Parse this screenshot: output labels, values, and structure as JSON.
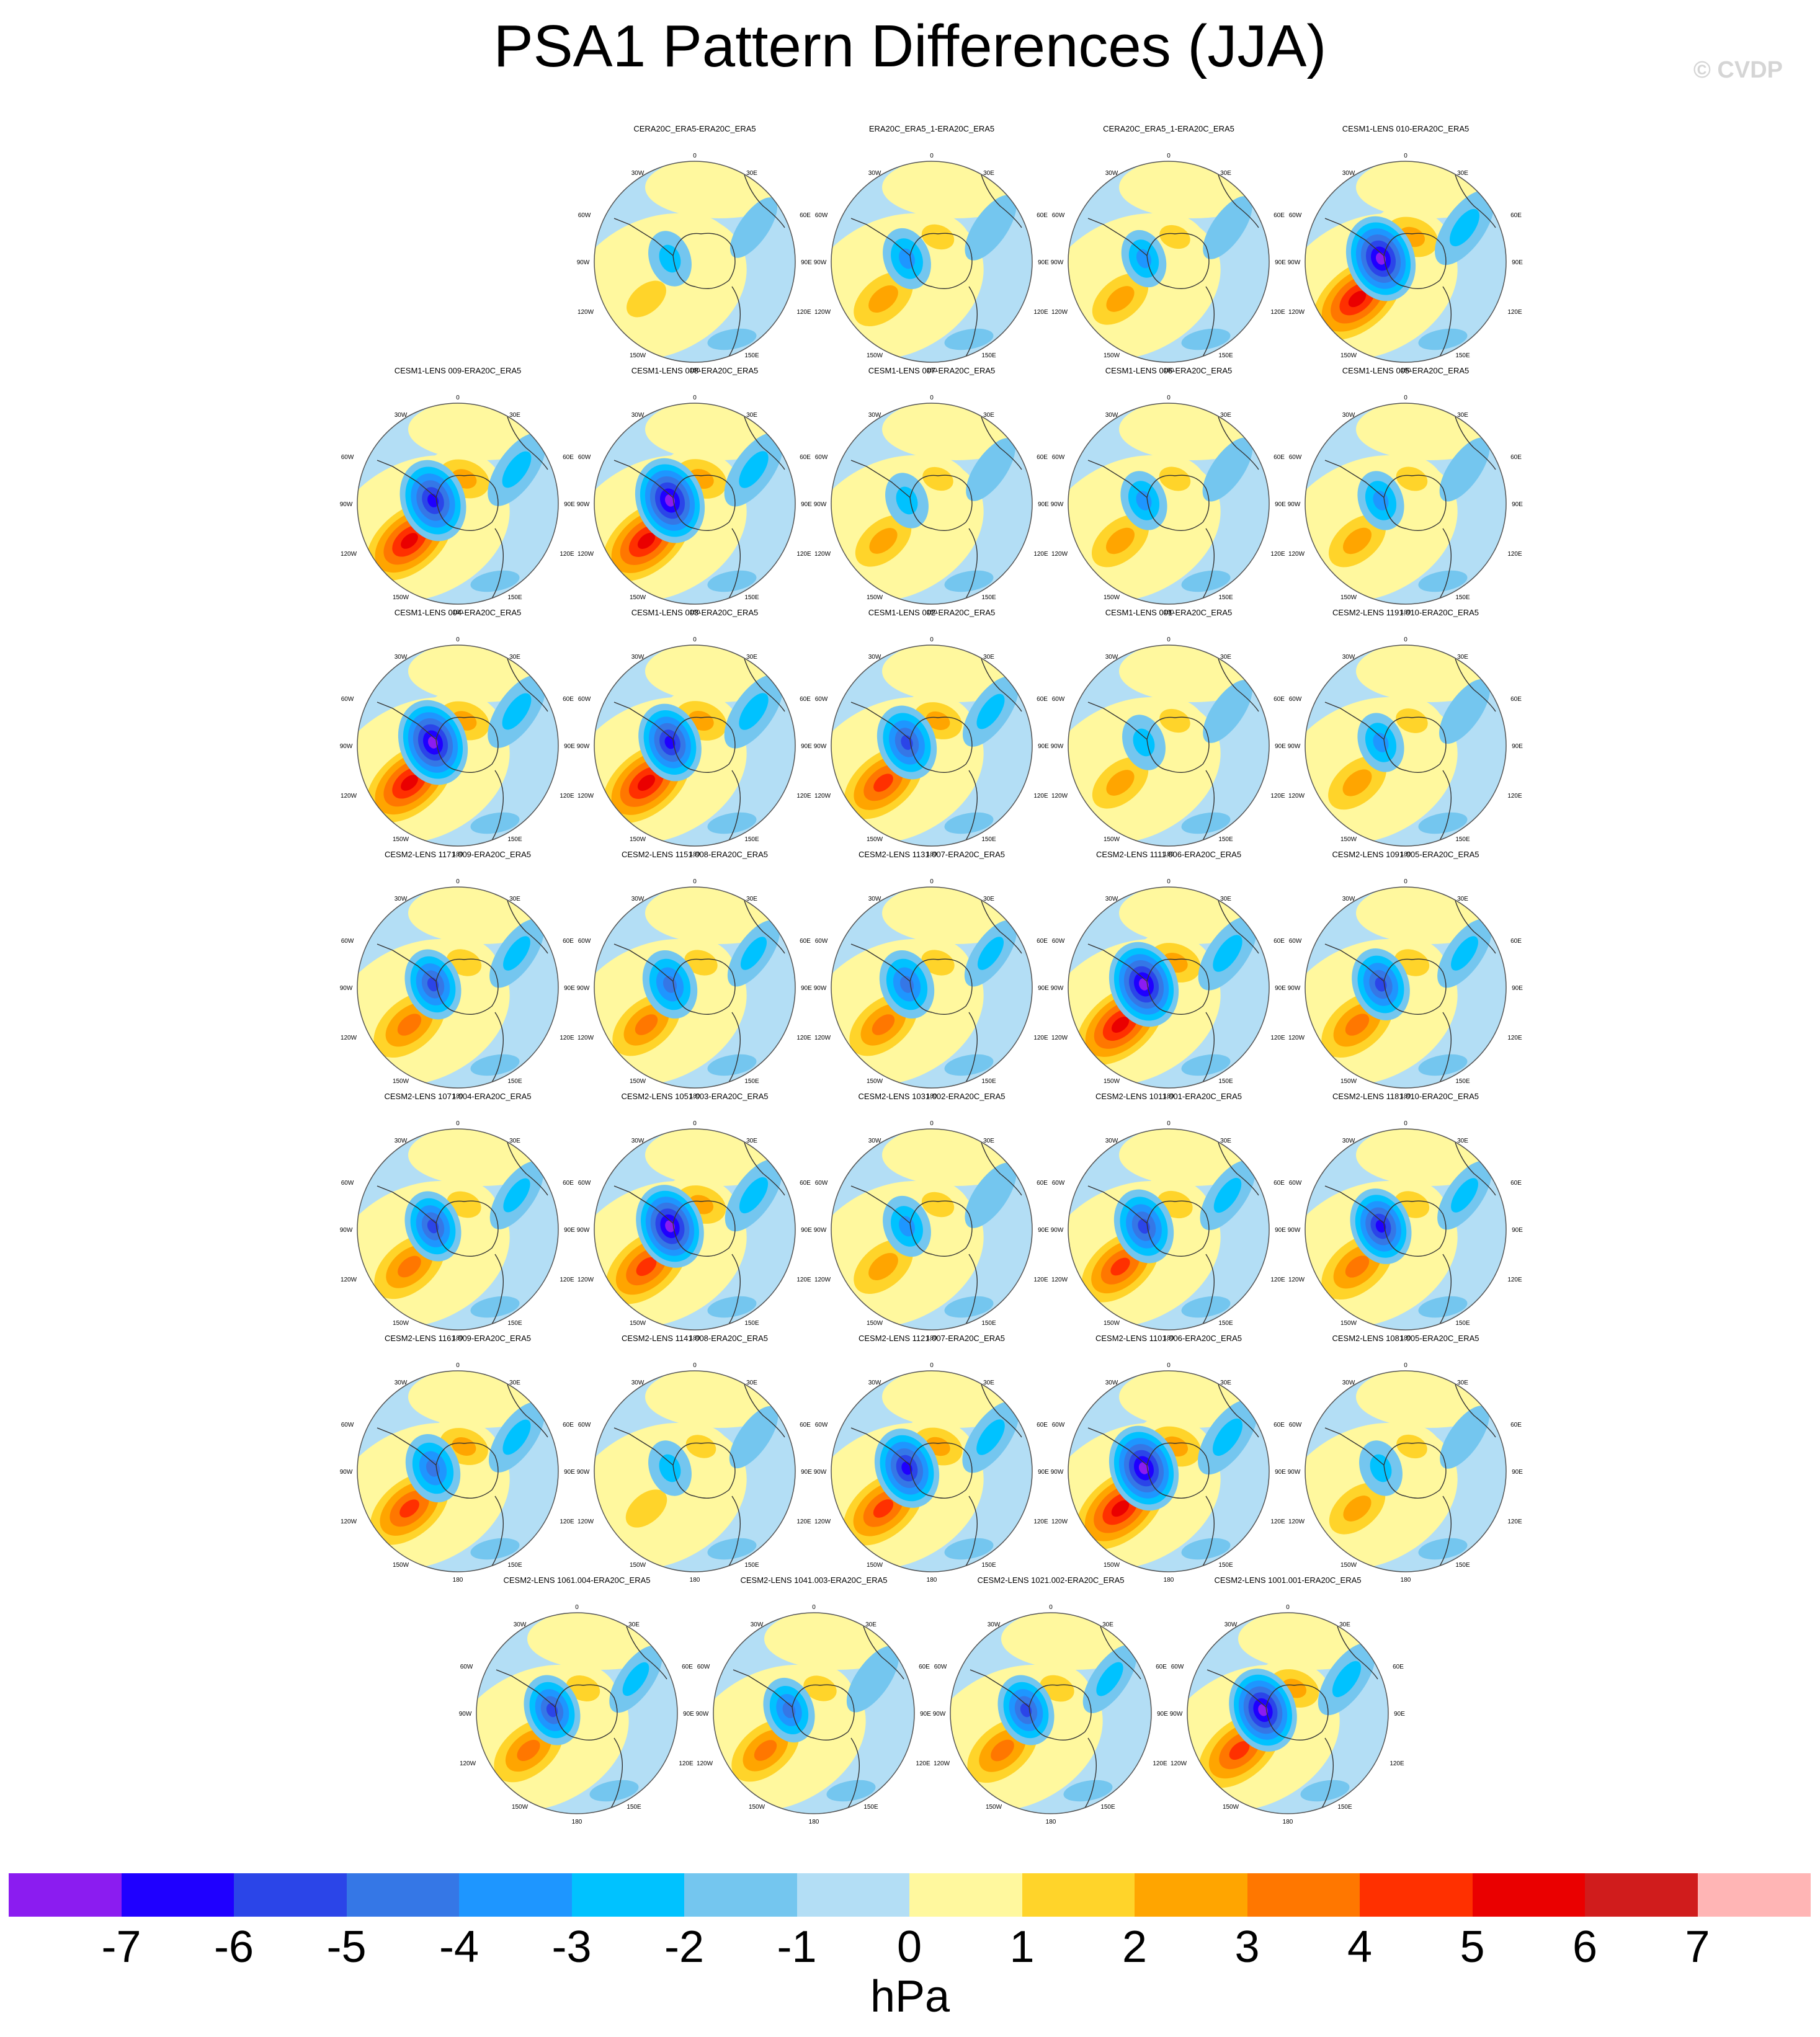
{
  "figure": {
    "title": "PSA1 Pattern Differences (JJA)",
    "watermark": "© CVDP"
  },
  "map_labels": {
    "top": "0",
    "left_upper": "60W",
    "left_mid": "90W",
    "left_lower": "120W",
    "right_upper": "60E",
    "right_mid": "90E",
    "right_lower": "120E",
    "top_left": "30W",
    "top_right": "30E",
    "bottom_left": "150W",
    "bottom": "180",
    "bottom_right": "150E"
  },
  "panels": [
    {
      "title": "CERA20C_ERA5-ERA20C_ERA5",
      "strength": 0.15,
      "neg": 0.2
    },
    {
      "title": "ERA20C_ERA5_1-ERA20C_ERA5",
      "strength": 0.45,
      "neg": 0.35
    },
    {
      "title": "CERA20C_ERA5_1-ERA20C_ERA5",
      "strength": 0.3,
      "neg": 0.25
    },
    {
      "title": "CESM1-LENS 010-ERA20C_ERA5",
      "strength": 1.0,
      "neg": 1.0
    },
    {
      "title": "CESM1-LENS 009-ERA20C_ERA5",
      "strength": 0.9,
      "neg": 0.9
    },
    {
      "title": "CESM1-LENS 008-ERA20C_ERA5",
      "strength": 0.95,
      "neg": 1.0
    },
    {
      "title": "CESM1-LENS 007-ERA20C_ERA5",
      "strength": 0.3,
      "neg": 0.2
    },
    {
      "title": "CESM1-LENS 006-ERA20C_ERA5",
      "strength": 0.35,
      "neg": 0.3
    },
    {
      "title": "CESM1-LENS 005-ERA20C_ERA5",
      "strength": 0.35,
      "neg": 0.3
    },
    {
      "title": "CESM1-LENS 004-ERA20C_ERA5",
      "strength": 0.9,
      "neg": 1.0
    },
    {
      "title": "CESM1-LENS 003-ERA20C_ERA5",
      "strength": 0.95,
      "neg": 0.8
    },
    {
      "title": "CESM1-LENS 002-ERA20C_ERA5",
      "strength": 0.75,
      "neg": 0.7
    },
    {
      "title": "CESM1-LENS 001-ERA20C_ERA5",
      "strength": 0.3,
      "neg": 0.2
    },
    {
      "title": "CESM2-LENS 1191.010-ERA20C_ERA5",
      "strength": 0.4,
      "neg": 0.3
    },
    {
      "title": "CESM2-LENS 1171.009-ERA20C_ERA5",
      "strength": 0.65,
      "neg": 0.6
    },
    {
      "title": "CESM2-LENS 1151.008-ERA20C_ERA5",
      "strength": 0.5,
      "neg": 0.55
    },
    {
      "title": "CESM2-LENS 1131.007-ERA20C_ERA5",
      "strength": 0.5,
      "neg": 0.55
    },
    {
      "title": "CESM2-LENS 1111.006-ERA20C_ERA5",
      "strength": 0.95,
      "neg": 1.0
    },
    {
      "title": "CESM2-LENS 1091.005-ERA20C_ERA5",
      "strength": 0.65,
      "neg": 0.65
    },
    {
      "title": "CESM2-LENS 1071.004-ERA20C_ERA5",
      "strength": 0.6,
      "neg": 0.6
    },
    {
      "title": "CESM2-LENS 1051.003-ERA20C_ERA5",
      "strength": 0.85,
      "neg": 0.95
    },
    {
      "title": "CESM2-LENS 1031.002-ERA20C_ERA5",
      "strength": 0.45,
      "neg": 0.35
    },
    {
      "title": "CESM2-LENS 1011.001-ERA20C_ERA5",
      "strength": 0.7,
      "neg": 0.7
    },
    {
      "title": "CESM2-LENS 1181.010-ERA20C_ERA5",
      "strength": 0.65,
      "neg": 0.75
    },
    {
      "title": "CESM2-LENS 1161.009-ERA20C_ERA5",
      "strength": 0.75,
      "neg": 0.55
    },
    {
      "title": "CESM2-LENS 1141.008-ERA20C_ERA5",
      "strength": 0.25,
      "neg": 0.2
    },
    {
      "title": "CESM2-LENS 1121.007-ERA20C_ERA5",
      "strength": 0.8,
      "neg": 0.85
    },
    {
      "title": "CESM2-LENS 1101.006-ERA20C_ERA5",
      "strength": 1.0,
      "neg": 1.0
    },
    {
      "title": "CESM2-LENS 1081.005-ERA20C_ERA5",
      "strength": 0.3,
      "neg": 0.2
    },
    {
      "title": "CESM2-LENS 1061.004-ERA20C_ERA5",
      "strength": 0.55,
      "neg": 0.6
    },
    {
      "title": "CESM2-LENS 1041.003-ERA20C_ERA5",
      "strength": 0.5,
      "neg": 0.45
    },
    {
      "title": "CESM2-LENS 1021.002-ERA20C_ERA5",
      "strength": 0.6,
      "neg": 0.6
    },
    {
      "title": "CESM2-LENS 1001.001-ERA20C_ERA5",
      "strength": 0.85,
      "neg": 0.95
    }
  ],
  "colorbar": {
    "units": "hPa",
    "colors": [
      "#8b1cf0",
      "#1f00ff",
      "#2b45e8",
      "#3577e6",
      "#1e96ff",
      "#00c2ff",
      "#74c6ef",
      "#b3def5",
      "#fff89e",
      "#ffd42a",
      "#ffa500",
      "#ff7700",
      "#ff3000",
      "#ea0000",
      "#d01c1c",
      "#ffb5b5"
    ],
    "ticks": [
      "-7",
      "-6",
      "-5",
      "-4",
      "-3",
      "-2",
      "-1",
      "0",
      "1",
      "2",
      "3",
      "4",
      "5",
      "6",
      "7"
    ]
  }
}
